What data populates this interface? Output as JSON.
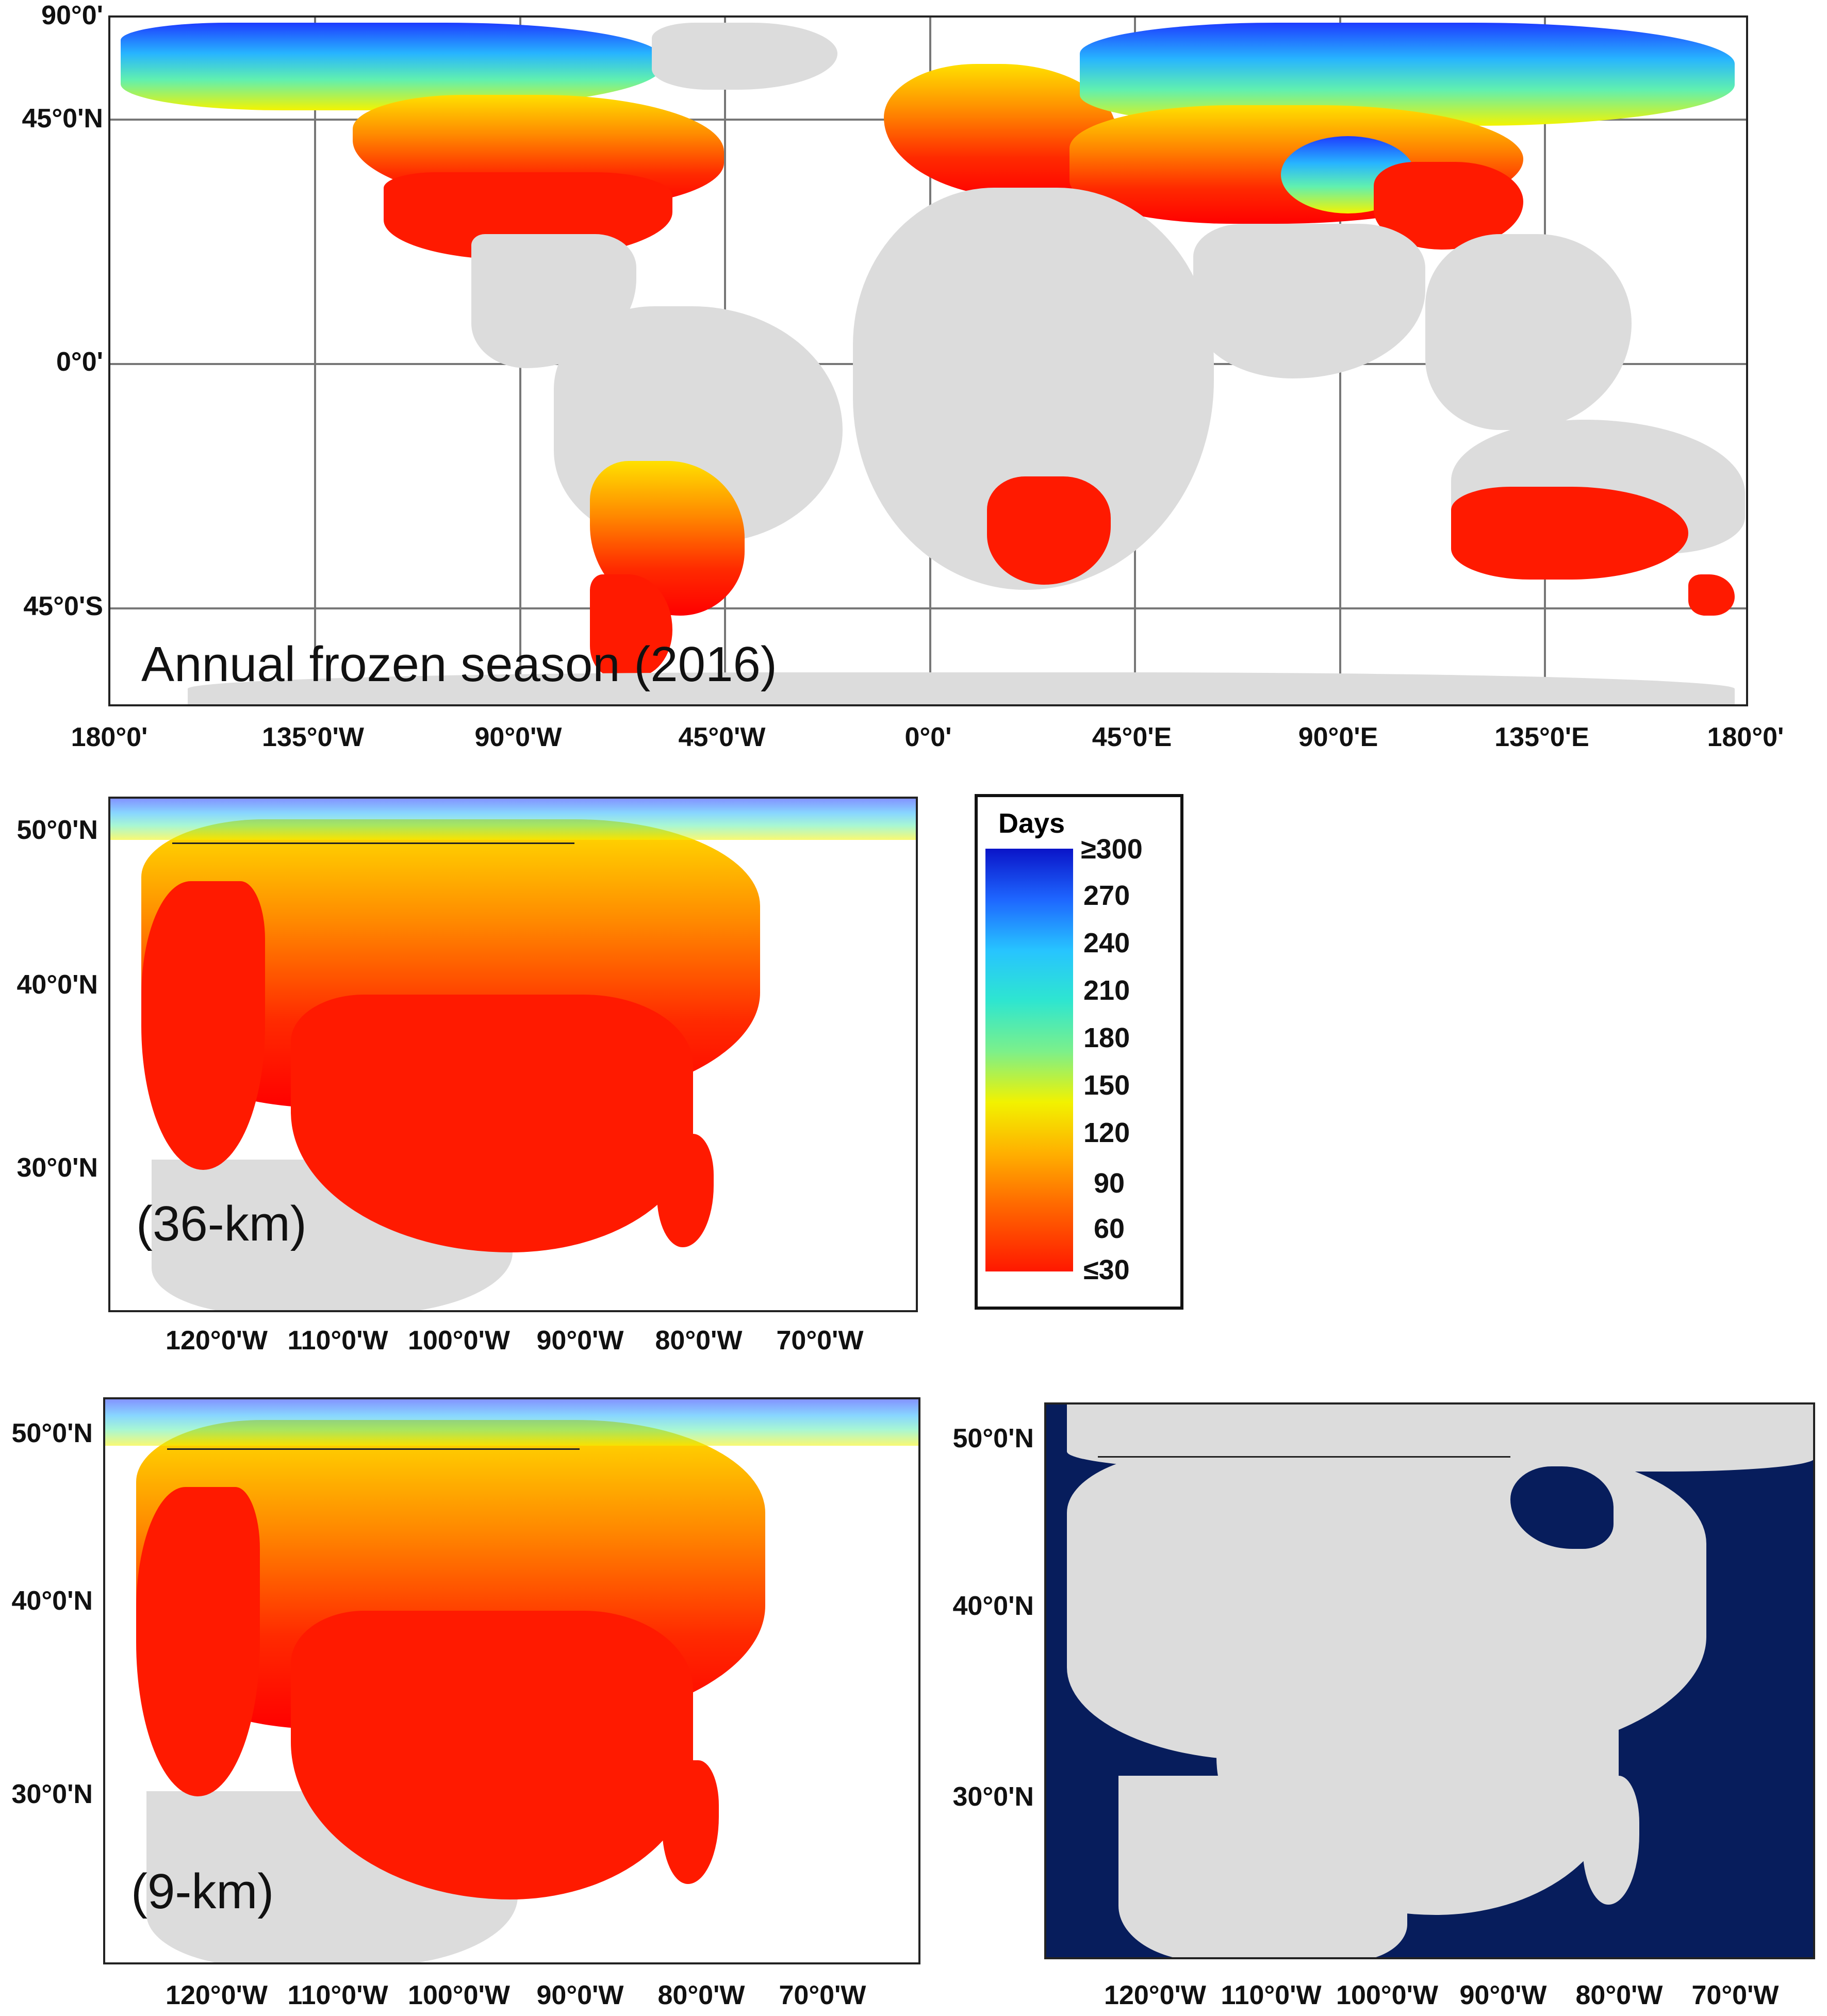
{
  "figure": {
    "top_map": {
      "label": "Annual frozen season (2016)",
      "y_ticks": [
        "90°0'",
        "45°0'N",
        "0°0'",
        "45°0'S"
      ],
      "x_ticks": [
        "180°0'",
        "135°0'W",
        "90°0'W",
        "45°0'W",
        "0°0'",
        "45°0'E",
        "90°0'E",
        "135°0'E",
        "180°0'"
      ]
    },
    "conus_36km": {
      "label": "(36-km)",
      "y_ticks": [
        "50°0'N",
        "40°0'N",
        "30°0'N"
      ],
      "x_ticks": [
        "120°0'W",
        "110°0'W",
        "100°0'W",
        "90°0'W",
        "80°0'W",
        "70°0'W"
      ]
    },
    "conus_9km": {
      "label": "(9-km)",
      "y_ticks": [
        "50°0'N",
        "40°0'N",
        "30°0'N"
      ],
      "x_ticks": [
        "120°0'W",
        "110°0'W",
        "100°0'W",
        "90°0'W",
        "80°0'W",
        "70°0'W"
      ]
    },
    "conus_mask": {
      "y_ticks": [
        "50°0'N",
        "40°0'N",
        "30°0'N"
      ],
      "x_ticks": [
        "120°0'W",
        "110°0'W",
        "100°0'W",
        "90°0'W",
        "80°0'W",
        "70°0'W"
      ]
    },
    "legend": {
      "title": "Days",
      "ticks": [
        "≥300",
        "270",
        "240",
        "210",
        "180",
        "150",
        "120",
        "90",
        "60",
        "≤30"
      ]
    }
  },
  "colors": {
    "scale_low": "#ff1800",
    "scale_mid": "#f2f200",
    "scale_high": "#0a14c8",
    "land_no_data": "#dcdcdc",
    "water": "#071d5c"
  }
}
